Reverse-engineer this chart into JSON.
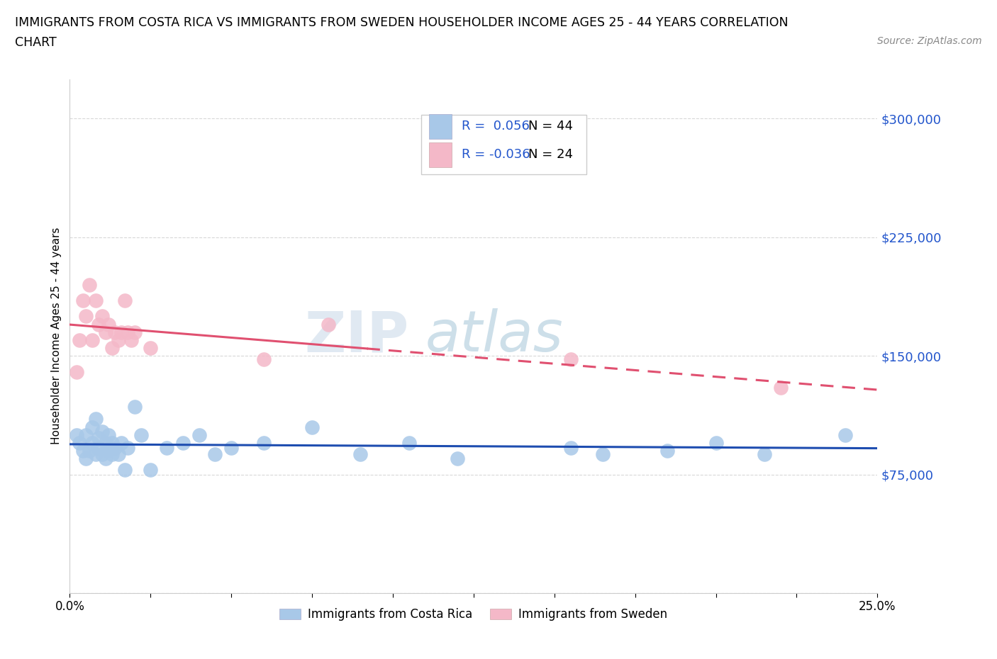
{
  "title_line1": "IMMIGRANTS FROM COSTA RICA VS IMMIGRANTS FROM SWEDEN HOUSEHOLDER INCOME AGES 25 - 44 YEARS CORRELATION",
  "title_line2": "CHART",
  "source_text": "Source: ZipAtlas.com",
  "watermark_text": "ZIP",
  "watermark_text2": "atlas",
  "ylabel": "Householder Income Ages 25 - 44 years",
  "xlim": [
    0.0,
    0.25
  ],
  "ylim": [
    0,
    325000
  ],
  "yticks": [
    0,
    75000,
    150000,
    225000,
    300000
  ],
  "ytick_labels": [
    "",
    "$75,000",
    "$150,000",
    "$225,000",
    "$300,000"
  ],
  "xticks": [
    0.0,
    0.025,
    0.05,
    0.075,
    0.1,
    0.125,
    0.15,
    0.175,
    0.2,
    0.225,
    0.25
  ],
  "xtick_labels": [
    "0.0%",
    "",
    "",
    "",
    "",
    "",
    "",
    "",
    "",
    "",
    "25.0%"
  ],
  "legend_r1": "R =  0.056",
  "legend_n1": "N = 44",
  "legend_r2": "R = -0.036",
  "legend_n2": "N = 24",
  "color_cr": "#a8c8e8",
  "color_sw": "#f4b8c8",
  "line_color_cr": "#1e4db0",
  "line_color_sw": "#e05070",
  "grid_color": "#d8d8d8",
  "background_color": "#ffffff",
  "costa_rica_x": [
    0.002,
    0.003,
    0.004,
    0.005,
    0.005,
    0.006,
    0.007,
    0.007,
    0.008,
    0.008,
    0.009,
    0.009,
    0.01,
    0.01,
    0.011,
    0.011,
    0.012,
    0.012,
    0.013,
    0.013,
    0.014,
    0.015,
    0.016,
    0.017,
    0.018,
    0.02,
    0.022,
    0.025,
    0.03,
    0.035,
    0.04,
    0.045,
    0.05,
    0.06,
    0.075,
    0.09,
    0.105,
    0.12,
    0.155,
    0.165,
    0.185,
    0.2,
    0.215,
    0.24
  ],
  "costa_rica_y": [
    100000,
    95000,
    90000,
    85000,
    100000,
    90000,
    105000,
    95000,
    110000,
    88000,
    92000,
    98000,
    88000,
    102000,
    95000,
    85000,
    100000,
    90000,
    95000,
    88000,
    92000,
    88000,
    95000,
    78000,
    92000,
    118000,
    100000,
    78000,
    92000,
    95000,
    100000,
    88000,
    92000,
    95000,
    105000,
    88000,
    95000,
    85000,
    92000,
    88000,
    90000,
    95000,
    88000,
    100000
  ],
  "sweden_x": [
    0.002,
    0.003,
    0.004,
    0.005,
    0.006,
    0.007,
    0.008,
    0.009,
    0.01,
    0.011,
    0.012,
    0.013,
    0.014,
    0.015,
    0.016,
    0.017,
    0.018,
    0.019,
    0.02,
    0.025,
    0.06,
    0.08,
    0.155,
    0.22
  ],
  "sweden_y": [
    140000,
    160000,
    185000,
    175000,
    195000,
    160000,
    185000,
    170000,
    175000,
    165000,
    170000,
    155000,
    165000,
    160000,
    165000,
    185000,
    165000,
    160000,
    165000,
    155000,
    148000,
    170000,
    148000,
    130000
  ]
}
